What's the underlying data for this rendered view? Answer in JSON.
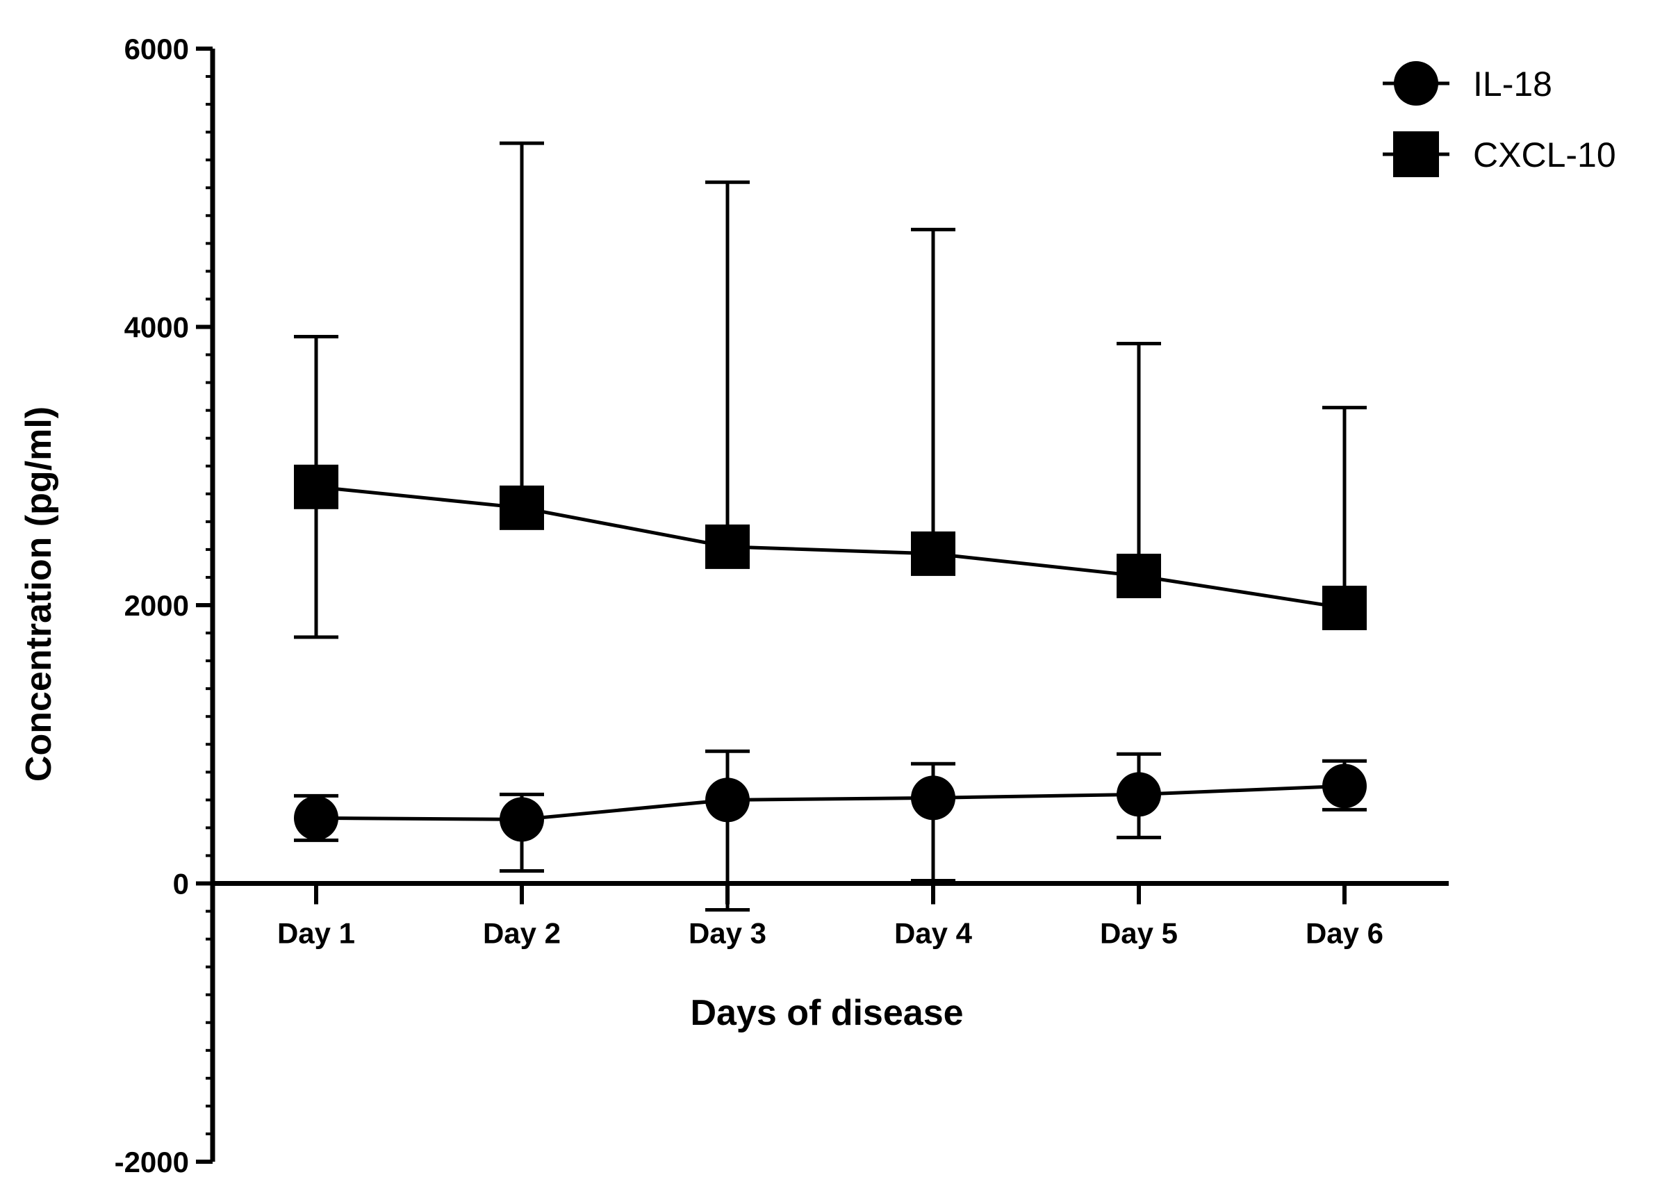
{
  "chart_data": {
    "type": "line",
    "title": "",
    "xlabel": "Days of disease",
    "ylabel": "Concentration (pg/ml)",
    "categories": [
      "Day 1",
      "Day 2",
      "Day 3",
      "Day 4",
      "Day 5",
      "Day 6"
    ],
    "ylim": [
      -2000,
      6000
    ],
    "y_ticks": [
      "6000",
      "4000",
      "2000",
      "0",
      "-2000"
    ],
    "y_tick_values": [
      6000,
      4000,
      2000,
      0,
      -2000
    ],
    "y_minor_step": 200,
    "grid": false,
    "legend_position": "top-right",
    "series": [
      {
        "name": "IL-18",
        "marker": "circle",
        "color": "#000000",
        "values": [
          470,
          460,
          600,
          615,
          640,
          700
        ],
        "error_low": [
          310,
          90,
          -190,
          20,
          330,
          530
        ],
        "error_high": [
          630,
          640,
          950,
          860,
          930,
          880
        ]
      },
      {
        "name": "CXCL-10",
        "marker": "square",
        "color": "#000000",
        "values": [
          2850,
          2700,
          2420,
          2370,
          2210,
          1980
        ],
        "error_low": [
          1770,
          null,
          null,
          null,
          null,
          null
        ],
        "error_high": [
          3930,
          5320,
          5040,
          4700,
          3880,
          3420
        ]
      }
    ]
  }
}
